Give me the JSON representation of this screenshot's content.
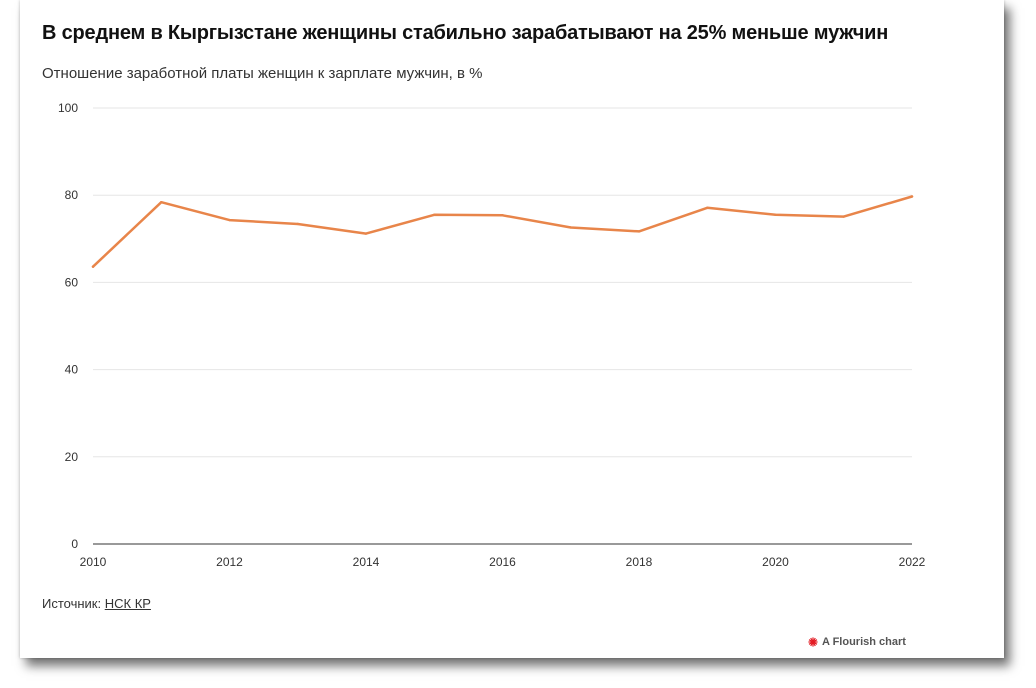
{
  "title": "В среднем в Кыргызстане женщины стабильно зарабатывают на 25% меньше мужчин",
  "subtitle": "Отношение заработной платы женщин к зарплате мужчин, в %",
  "source": {
    "label": "Источник:",
    "link_text": "НСК КР"
  },
  "branding": {
    "text": "A Flourish chart",
    "icon": "flourish-logo-icon",
    "icon_color": "#e31b23"
  },
  "chart_data": {
    "type": "line",
    "title": "В среднем в Кыргызстане женщины стабильно зарабатывают на 25% меньше мужчин",
    "subtitle": "Отношение заработной платы женщин к зарплате мужчин, в %",
    "xlabel": "",
    "ylabel": "",
    "x": [
      2010,
      2011,
      2012,
      2013,
      2014,
      2015,
      2016,
      2017,
      2018,
      2019,
      2020,
      2021,
      2022
    ],
    "series": [
      {
        "values": [
          63.6,
          78.4,
          74.3,
          73.4,
          71.2,
          75.5,
          75.4,
          72.6,
          71.7,
          77.1,
          75.5,
          75.1,
          79.7
        ],
        "color": "#e8854a"
      }
    ],
    "xlim": [
      2010,
      2022
    ],
    "ylim": [
      0,
      100
    ],
    "x_ticks": [
      2010,
      2012,
      2014,
      2016,
      2018,
      2020,
      2022
    ],
    "y_ticks": [
      0,
      20,
      40,
      60,
      80,
      100
    ],
    "grid": true,
    "legend": "none"
  }
}
